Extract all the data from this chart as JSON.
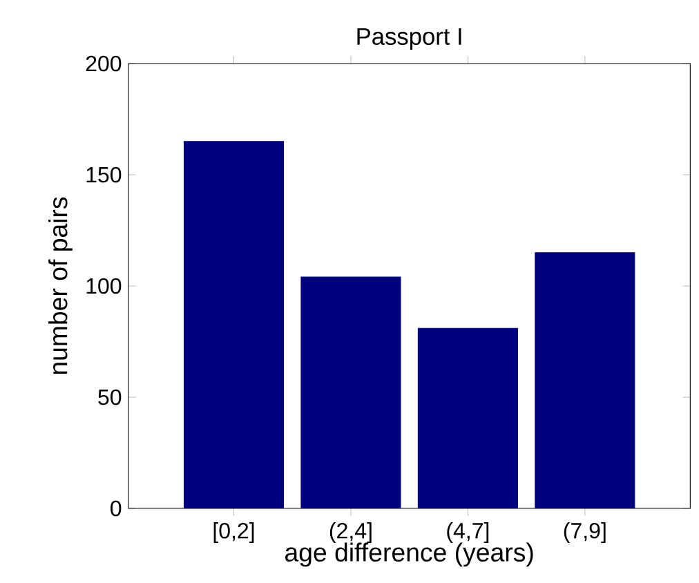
{
  "chart_data": {
    "type": "bar",
    "title": "Passport I",
    "xlabel": "age difference (years)",
    "ylabel": "number of pairs",
    "categories": [
      "[0,2]",
      "(2,4]",
      "(4,7]",
      "(7,9]"
    ],
    "values": [
      165,
      104,
      81,
      115
    ],
    "color": "#00007f",
    "ylim": [
      0,
      200
    ],
    "yticks": [
      0,
      50,
      100,
      150,
      200
    ],
    "grid": false
  }
}
